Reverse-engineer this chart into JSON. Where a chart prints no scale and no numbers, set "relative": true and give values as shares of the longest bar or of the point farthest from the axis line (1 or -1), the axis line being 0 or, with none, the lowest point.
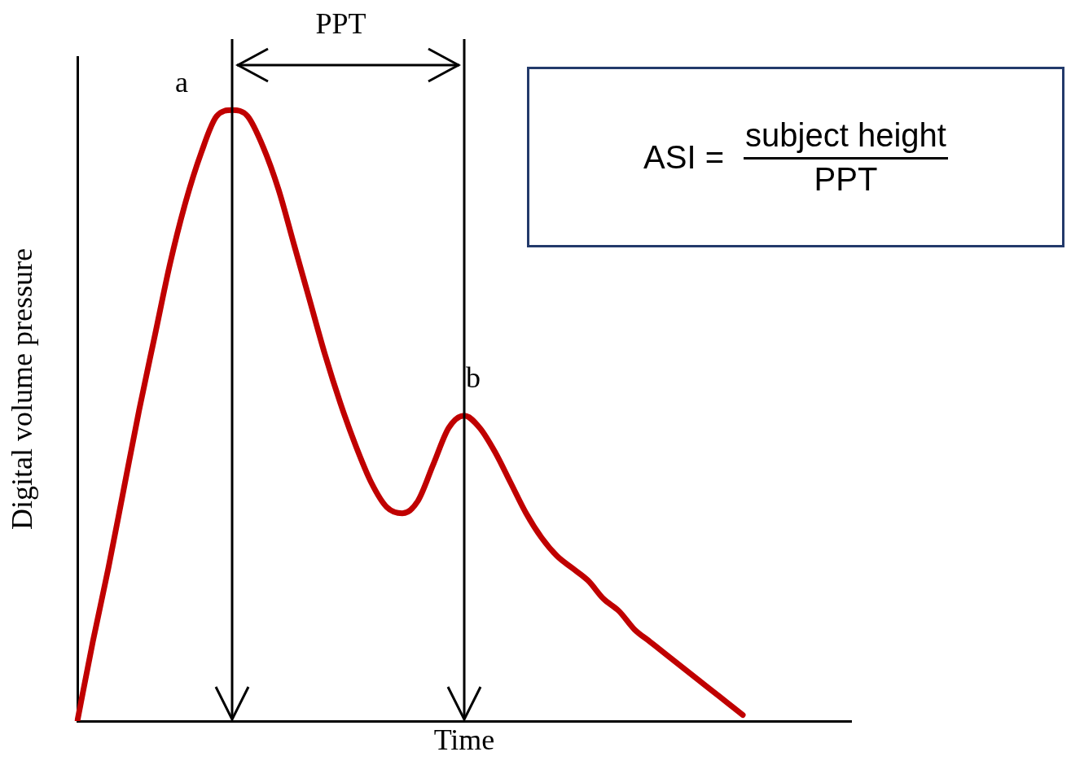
{
  "chart_data": {
    "type": "line",
    "relative": true,
    "xlabel": "Time",
    "ylabel": "Digital volume pressure",
    "color": "#c00000",
    "legend": false,
    "grid": false,
    "marker": "none",
    "line_style": "solid",
    "categories": [
      null,
      null,
      null,
      null,
      null,
      null,
      null,
      null,
      null,
      null,
      null,
      null,
      null,
      null,
      null,
      null,
      null,
      null,
      null,
      null,
      null,
      null,
      null,
      null,
      null,
      null,
      null,
      null,
      null,
      null,
      null,
      null,
      null,
      null,
      null,
      null,
      null,
      null,
      null,
      null,
      null,
      null,
      null,
      null,
      null,
      null,
      null,
      null,
      null,
      null,
      null
    ],
    "values": [
      0,
      0.13,
      0.25,
      0.38,
      0.51,
      0.63,
      0.75,
      0.85,
      0.93,
      0.99,
      1,
      0.99,
      0.94,
      0.87,
      0.78,
      0.69,
      0.6,
      0.52,
      0.45,
      0.39,
      0.35,
      0.34,
      0.36,
      0.42,
      0.48,
      0.5,
      0.48,
      0.44,
      0.39,
      0.34,
      0.3,
      0.27,
      0.25,
      0.23,
      0.2,
      0.18,
      0.15,
      0.13,
      0.11,
      0.09,
      0.07,
      0.05,
      0.03,
      0.01,
      null,
      null,
      null,
      null,
      null,
      null,
      null
    ],
    "annotations": [
      "a",
      "b",
      "PPT",
      "ASI =",
      "subject height",
      "PPT"
    ]
  }
}
